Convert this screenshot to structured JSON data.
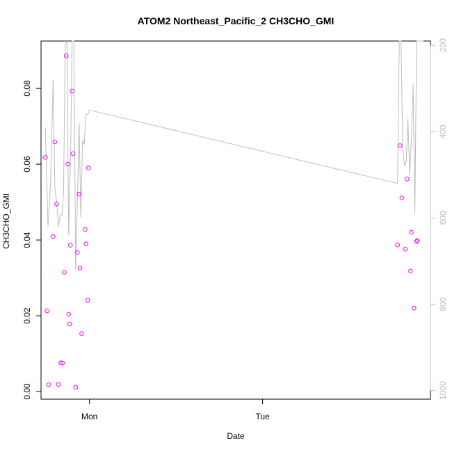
{
  "chart_data": {
    "type": "scatter",
    "title": "ATOM2 Northeast_Pacific_2 CH3CHO_GMI",
    "xlabel": "Date",
    "ylabel": "CH3CHO_GMI",
    "x_tick_labels": [
      "Mon",
      "Tue"
    ],
    "x_ticks_day": [
      0,
      1
    ],
    "x_range_day": [
      -0.28,
      1.97
    ],
    "ylim": [
      -0.002,
      0.0925
    ],
    "y_ticks": [
      0.0,
      0.02,
      0.04,
      0.06,
      0.08
    ],
    "y_tick_labels": [
      "0.00",
      "0.02",
      "0.04",
      "0.06",
      "0.08"
    ],
    "y2_ticks": [
      200,
      400,
      600,
      800,
      1000
    ],
    "y2_tick_labels": [
      "200",
      "400",
      "600",
      "800",
      "1000"
    ],
    "y2_range": [
      1020,
      190
    ],
    "grid": false,
    "legend": "none",
    "colors": {
      "points": "#ff00ff",
      "pressure_line": "#bdbdbd",
      "axis": "#000000",
      "right_axis": "#bdbdbd"
    },
    "series": [
      {
        "kind": "points",
        "x_day": [
          -0.255,
          -0.245,
          -0.235,
          -0.21,
          -0.2,
          -0.19,
          -0.18,
          -0.165,
          -0.155,
          -0.145,
          -0.135,
          -0.125,
          -0.12,
          -0.115,
          -0.11,
          -0.1,
          -0.095,
          -0.08,
          -0.07,
          -0.06,
          -0.055,
          -0.045,
          -0.025,
          -0.02,
          -0.01,
          -0.005
        ],
        "y": [
          0.0618,
          0.0213,
          0.0018,
          0.0409,
          0.0659,
          0.0495,
          0.0019,
          0.0076,
          0.0075,
          0.0315,
          0.0886,
          0.06,
          0.0204,
          0.0178,
          0.0386,
          0.0793,
          0.0628,
          0.0011,
          0.0367,
          0.0521,
          0.0326,
          0.0153,
          0.0428,
          0.039,
          0.0241,
          0.059
        ]
      },
      {
        "kind": "points",
        "x_day": [
          1.78,
          1.795,
          1.805,
          1.825,
          1.835,
          1.855,
          1.86,
          1.875,
          1.89,
          1.895
        ],
        "y": [
          0.0387,
          0.0649,
          0.0511,
          0.0376,
          0.0561,
          0.0318,
          0.042,
          0.022,
          0.0396,
          0.0399
        ]
      },
      {
        "kind": "line",
        "axis": "right",
        "x_day": [
          -0.255,
          -0.24,
          -0.225,
          -0.21,
          -0.2,
          -0.19,
          -0.18,
          -0.17,
          -0.16,
          -0.15,
          -0.14,
          -0.13,
          -0.12,
          -0.11,
          -0.1,
          -0.09,
          -0.08,
          -0.07,
          -0.06,
          -0.05,
          -0.04,
          -0.03,
          -0.02,
          -0.01,
          0.0,
          1.78,
          1.79,
          1.8,
          1.81,
          1.82,
          1.83,
          1.84,
          1.85,
          1.86,
          1.87,
          1.88,
          1.89,
          1.9,
          1.91,
          1.92,
          1.93
        ],
        "y": [
          390,
          620,
          520,
          280,
          530,
          560,
          620,
          595,
          595,
          540,
          200,
          190,
          640,
          470,
          190,
          190,
          720,
          560,
          380,
          600,
          420,
          430,
          360,
          360,
          350,
          520,
          190,
          190,
          440,
          480,
          470,
          370,
          500,
          420,
          290,
          590,
          190,
          190,
          190,
          190,
          190
        ]
      }
    ]
  }
}
